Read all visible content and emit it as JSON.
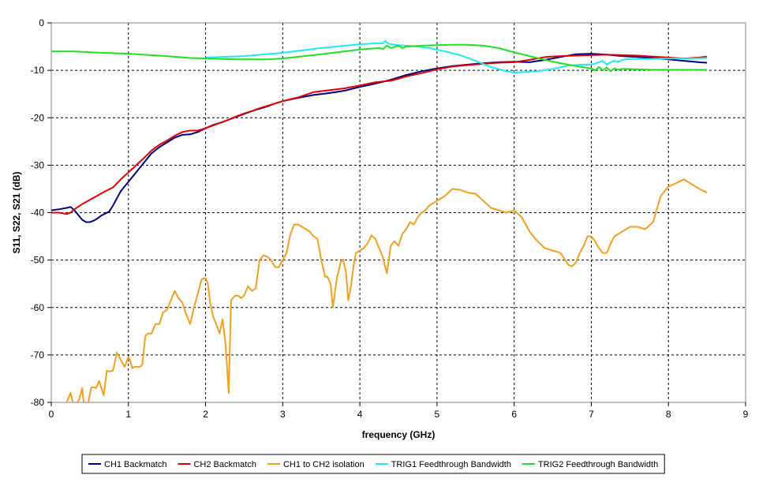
{
  "chart_data": {
    "type": "line",
    "xlabel": "frequency (GHz)",
    "ylabel": "S11, S22, S21 (dB)",
    "xlim": [
      0,
      9
    ],
    "ylim": [
      -80,
      0
    ],
    "x_ticks": [
      0,
      1,
      2,
      3,
      4,
      5,
      6,
      7,
      8,
      9
    ],
    "y_ticks": [
      0,
      -10,
      -20,
      -30,
      -40,
      -50,
      -60,
      -70,
      -80
    ],
    "grid": true,
    "legend_position": "bottom",
    "series": [
      {
        "name": "CH1 Backmatch",
        "color": "#000080",
        "x": [
          0,
          0.1,
          0.2,
          0.25,
          0.3,
          0.35,
          0.4,
          0.45,
          0.5,
          0.55,
          0.6,
          0.65,
          0.7,
          0.75,
          0.8,
          0.9,
          1.0,
          1.1,
          1.2,
          1.3,
          1.4,
          1.5,
          1.6,
          1.7,
          1.8,
          1.9,
          2.0,
          2.1,
          2.2,
          2.3,
          2.4,
          2.5,
          2.6,
          2.7,
          2.8,
          2.9,
          3.0,
          3.2,
          3.4,
          3.6,
          3.8,
          4.0,
          4.2,
          4.4,
          4.6,
          4.8,
          5.0,
          5.2,
          5.4,
          5.6,
          5.8,
          6.0,
          6.2,
          6.4,
          6.6,
          6.8,
          7.0,
          7.2,
          7.4,
          7.6,
          7.8,
          8.0,
          8.2,
          8.4,
          8.5
        ],
        "values": [
          -39.5,
          -39.3,
          -39.0,
          -38.8,
          -39.5,
          -40.5,
          -41.5,
          -42.0,
          -42.0,
          -41.7,
          -41.2,
          -40.6,
          -40.2,
          -39.8,
          -38.5,
          -35.5,
          -33.5,
          -31.5,
          -29.5,
          -27.5,
          -26.2,
          -25.2,
          -24.2,
          -23.6,
          -23.5,
          -23.0,
          -22.2,
          -21.5,
          -21.0,
          -20.4,
          -19.8,
          -19.2,
          -18.6,
          -18.1,
          -17.6,
          -17.0,
          -16.5,
          -15.8,
          -15.2,
          -14.8,
          -14.3,
          -13.5,
          -12.8,
          -12.0,
          -11.0,
          -10.2,
          -9.6,
          -9.1,
          -8.8,
          -8.5,
          -8.3,
          -8.2,
          -8.3,
          -7.8,
          -7.2,
          -6.6,
          -6.5,
          -6.7,
          -7.0,
          -7.2,
          -7.4,
          -7.7,
          -8.0,
          -8.3,
          -8.4
        ]
      },
      {
        "name": "CH2 Backmatch",
        "color": "#E00000",
        "x": [
          0,
          0.1,
          0.2,
          0.25,
          0.3,
          0.4,
          0.5,
          0.6,
          0.7,
          0.8,
          0.9,
          1.0,
          1.1,
          1.2,
          1.3,
          1.4,
          1.5,
          1.6,
          1.7,
          1.8,
          1.9,
          2.0,
          2.1,
          2.2,
          2.3,
          2.4,
          2.5,
          2.6,
          2.7,
          2.8,
          2.9,
          3.0,
          3.2,
          3.4,
          3.6,
          3.8,
          4.0,
          4.2,
          4.4,
          4.6,
          4.8,
          5.0,
          5.2,
          5.4,
          5.6,
          5.8,
          6.0,
          6.2,
          6.4,
          6.6,
          6.8,
          7.0,
          7.2,
          7.4,
          7.6,
          7.8,
          8.0,
          8.2,
          8.4,
          8.5
        ],
        "values": [
          -40.0,
          -40.0,
          -40.3,
          -40.0,
          -39.3,
          -38.2,
          -37.3,
          -36.4,
          -35.5,
          -34.7,
          -33.0,
          -31.5,
          -30.0,
          -28.5,
          -26.9,
          -25.7,
          -24.8,
          -23.8,
          -23.0,
          -22.7,
          -22.7,
          -22.2,
          -21.6,
          -21.0,
          -20.4,
          -19.7,
          -19.1,
          -18.6,
          -18.0,
          -17.5,
          -17.0,
          -16.5,
          -15.7,
          -14.6,
          -14.2,
          -13.8,
          -13.2,
          -12.5,
          -12.2,
          -11.3,
          -10.6,
          -9.8,
          -9.2,
          -8.9,
          -8.6,
          -8.4,
          -8.3,
          -7.8,
          -7.2,
          -7.0,
          -6.9,
          -6.8,
          -6.7,
          -6.8,
          -6.9,
          -7.1,
          -7.3,
          -7.5,
          -7.3,
          -7.1
        ]
      },
      {
        "name": "CH1 to CH2 isolation",
        "color": "#F0A020",
        "x": [
          0.2,
          0.25,
          0.28,
          0.3,
          0.33,
          0.36,
          0.4,
          0.42,
          0.45,
          0.48,
          0.52,
          0.55,
          0.58,
          0.62,
          0.65,
          0.68,
          0.72,
          0.75,
          0.8,
          0.85,
          0.9,
          0.95,
          1.0,
          1.02,
          1.05,
          1.08,
          1.12,
          1.15,
          1.18,
          1.22,
          1.25,
          1.3,
          1.35,
          1.4,
          1.45,
          1.5,
          1.55,
          1.6,
          1.65,
          1.7,
          1.75,
          1.8,
          1.85,
          1.9,
          1.95,
          2.0,
          2.03,
          2.06,
          2.1,
          2.15,
          2.18,
          2.22,
          2.26,
          2.3,
          2.33,
          2.38,
          2.42,
          2.46,
          2.5,
          2.55,
          2.6,
          2.65,
          2.7,
          2.75,
          2.8,
          2.85,
          2.9,
          2.95,
          3.0,
          3.05,
          3.1,
          3.15,
          3.2,
          3.25,
          3.3,
          3.35,
          3.4,
          3.45,
          3.5,
          3.55,
          3.58,
          3.62,
          3.65,
          3.7,
          3.75,
          3.78,
          3.82,
          3.85,
          3.88,
          3.92,
          3.95,
          4.0,
          4.05,
          4.1,
          4.15,
          4.2,
          4.25,
          4.3,
          4.35,
          4.4,
          4.45,
          4.5,
          4.55,
          4.6,
          4.65,
          4.7,
          4.75,
          4.8,
          4.85,
          4.9,
          5.0,
          5.1,
          5.2,
          5.3,
          5.4,
          5.5,
          5.6,
          5.7,
          5.8,
          5.9,
          6.0,
          6.1,
          6.2,
          6.3,
          6.4,
          6.5,
          6.6,
          6.7,
          6.75,
          6.8,
          6.85,
          6.9,
          6.95,
          7.0,
          7.05,
          7.1,
          7.15,
          7.2,
          7.25,
          7.3,
          7.4,
          7.5,
          7.6,
          7.7,
          7.8,
          7.9,
          8.0,
          8.1,
          8.2,
          8.3,
          8.4,
          8.5
        ],
        "values": [
          -80.0,
          -78.0,
          -80.0,
          -80.0,
          -80.0,
          -79.5,
          -77.0,
          -80.0,
          -80.0,
          -80.0,
          -76.8,
          -76.8,
          -77.0,
          -75.5,
          -77.0,
          -78.5,
          -73.3,
          -73.5,
          -73.3,
          -69.5,
          -71.0,
          -72.5,
          -70.5,
          -71.0,
          -72.8,
          -72.5,
          -72.5,
          -72.5,
          -72.0,
          -66.0,
          -65.5,
          -65.5,
          -63.5,
          -63.5,
          -61.0,
          -60.5,
          -58.5,
          -56.5,
          -58.0,
          -59.0,
          -61.5,
          -63.5,
          -60.0,
          -57.0,
          -54.0,
          -53.8,
          -55.0,
          -59.0,
          -62.0,
          -64.0,
          -65.5,
          -62.5,
          -68.0,
          -78.0,
          -58.5,
          -57.5,
          -57.5,
          -58.0,
          -57.5,
          -55.5,
          -56.5,
          -56.0,
          -50.0,
          -49.0,
          -49.3,
          -50.0,
          -51.5,
          -51.5,
          -50.0,
          -48.5,
          -44.5,
          -42.5,
          -42.5,
          -43.0,
          -43.5,
          -44.0,
          -45.0,
          -45.5,
          -50.0,
          -53.5,
          -53.5,
          -55.0,
          -60.0,
          -54.0,
          -50.5,
          -49.8,
          -52.5,
          -58.5,
          -56.0,
          -51.0,
          -48.5,
          -48.0,
          -47.5,
          -46.5,
          -44.8,
          -45.5,
          -47.5,
          -49.5,
          -52.8,
          -47.0,
          -46.0,
          -47.0,
          -44.5,
          -43.5,
          -42.0,
          -42.5,
          -41.0,
          -40.0,
          -39.5,
          -38.5,
          -37.5,
          -36.5,
          -35.0,
          -35.2,
          -35.8,
          -36.0,
          -37.5,
          -39.0,
          -39.5,
          -40.0,
          -39.5,
          -41.0,
          -44.0,
          -46.0,
          -47.5,
          -48.0,
          -48.5,
          -51.0,
          -51.3,
          -50.5,
          -48.5,
          -47.0,
          -45.0,
          -45.0,
          -46.0,
          -47.5,
          -48.5,
          -48.5,
          -46.5,
          -45.0,
          -44.0,
          -43.0,
          -43.0,
          -43.5,
          -42.0,
          -36.5,
          -34.5,
          -33.8,
          -33.0,
          -34.0,
          -35.0,
          -35.8
        ]
      },
      {
        "name": "TRIG1 Feedthrough Bandwidth",
        "color": "#20E8F0",
        "x": [
          2.0,
          2.5,
          3.0,
          3.5,
          4.0,
          4.2,
          4.3,
          4.33,
          4.36,
          4.4,
          4.5,
          4.7,
          4.9,
          5.1,
          5.3,
          5.5,
          5.7,
          5.9,
          6.0,
          6.1,
          6.3,
          6.5,
          6.7,
          6.9,
          7.0,
          7.1,
          7.15,
          7.2,
          7.25,
          7.3,
          7.35,
          7.4,
          7.5,
          7.7,
          8.0,
          8.3,
          8.5
        ],
        "values": [
          -7.3,
          -7.0,
          -6.3,
          -5.3,
          -4.5,
          -4.3,
          -4.3,
          -3.8,
          -4.3,
          -4.5,
          -4.7,
          -4.9,
          -5.3,
          -6.0,
          -6.8,
          -8.0,
          -9.3,
          -10.2,
          -10.5,
          -10.4,
          -10.2,
          -9.7,
          -9.0,
          -8.8,
          -8.8,
          -8.3,
          -8.0,
          -8.8,
          -8.3,
          -8.0,
          -8.2,
          -7.8,
          -7.6,
          -7.6,
          -7.5,
          -7.5,
          -7.4
        ]
      },
      {
        "name": "TRIG2 Feedthrough Bandwidth",
        "color": "#20E020",
        "x": [
          0,
          0.3,
          0.5,
          1.0,
          1.5,
          1.8,
          2.0,
          2.4,
          2.8,
          3.0,
          3.5,
          4.0,
          4.25,
          4.3,
          4.35,
          4.4,
          4.5,
          4.55,
          4.6,
          4.7,
          4.8,
          5.0,
          5.2,
          5.4,
          5.6,
          5.8,
          6.0,
          6.2,
          6.4,
          6.6,
          6.8,
          7.0,
          7.05,
          7.1,
          7.15,
          7.2,
          7.25,
          7.3,
          7.35,
          7.4,
          7.6,
          7.8,
          8.0,
          8.3,
          8.5
        ],
        "values": [
          -6.0,
          -6.0,
          -6.2,
          -6.5,
          -7.0,
          -7.4,
          -7.5,
          -7.7,
          -7.7,
          -7.5,
          -6.6,
          -5.6,
          -5.3,
          -5.5,
          -4.8,
          -5.3,
          -4.8,
          -5.3,
          -5.0,
          -4.9,
          -4.8,
          -4.7,
          -4.6,
          -4.6,
          -4.8,
          -5.3,
          -6.2,
          -7.0,
          -7.8,
          -8.5,
          -9.1,
          -9.6,
          -10.0,
          -9.3,
          -10.0,
          -9.4,
          -10.2,
          -9.6,
          -9.9,
          -9.7,
          -9.8,
          -9.9,
          -9.9,
          -9.9,
          -9.9
        ]
      }
    ]
  }
}
